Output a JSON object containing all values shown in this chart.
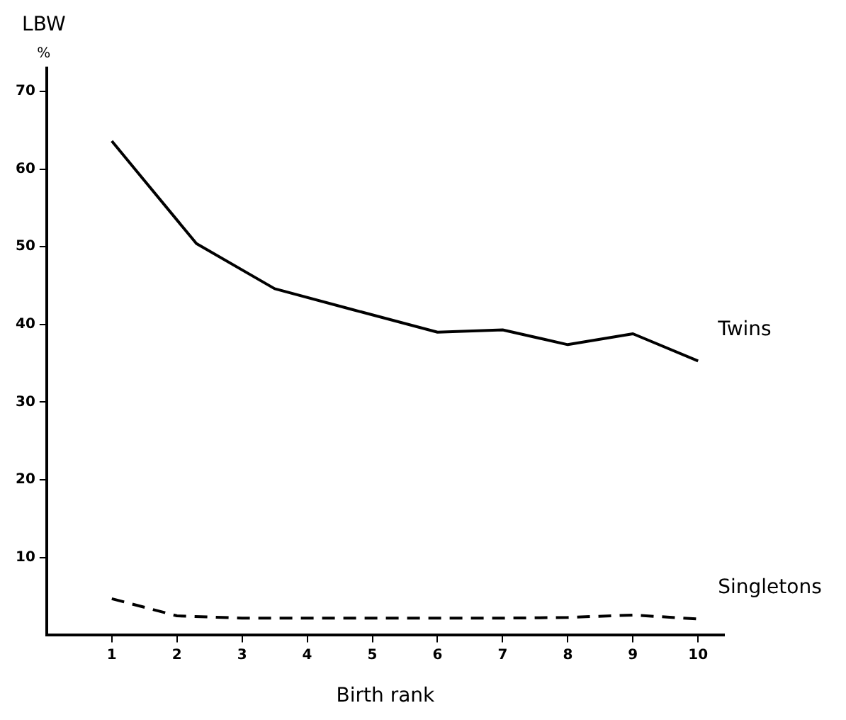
{
  "chart_data": {
    "type": "line",
    "xlabel": "Birth rank",
    "ylabel": "LBW\n%",
    "xlim": [
      0,
      10.4
    ],
    "ylim": [
      0,
      73
    ],
    "xticks": [
      1,
      2,
      3,
      4,
      5,
      6,
      7,
      8,
      9,
      10
    ],
    "yticks": [
      10,
      20,
      30,
      40,
      50,
      60,
      70
    ],
    "grid": false,
    "legend": false,
    "marker": "none",
    "series": [
      {
        "name": "Twins",
        "color": "#000000",
        "line_style": "solid",
        "x": [
          1,
          2.3,
          3.5,
          4.7,
          6,
          7,
          8,
          9,
          10
        ],
        "values": [
          63.6,
          50.4,
          44.6,
          41.9,
          39.0,
          39.3,
          37.4,
          38.8,
          35.3
        ]
      },
      {
        "name": "Singletons",
        "color": "#000000",
        "line_style": "dashed",
        "x": [
          1,
          2,
          3,
          4,
          5,
          6,
          7,
          8,
          9,
          10
        ],
        "values": [
          4.7,
          2.5,
          2.2,
          2.2,
          2.2,
          2.2,
          2.2,
          2.3,
          2.6,
          2.1
        ]
      }
    ]
  }
}
